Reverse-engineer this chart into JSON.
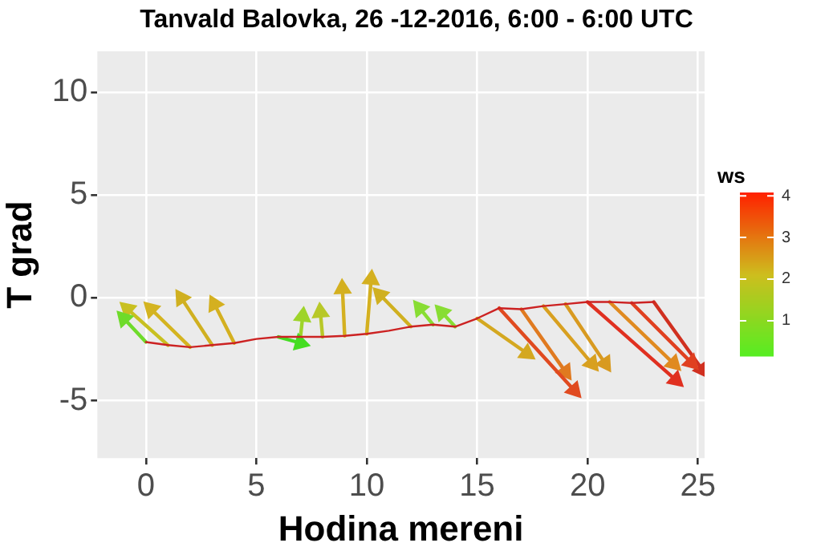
{
  "chart_data": {
    "type": "line",
    "title": "Tanvald Balovka, 26 -12-2016, 6:00 - 6:00 UTC",
    "xlabel": "Hodina mereni",
    "ylabel": "T grad",
    "clabel": "ws",
    "xlim": [
      -2.2,
      25.3
    ],
    "xticks": [
      0,
      5,
      10,
      15,
      20,
      25
    ],
    "ylim": [
      -7.8,
      12
    ],
    "yticks": [
      -5,
      0,
      5,
      10
    ],
    "clim": [
      0.15,
      4.08
    ],
    "cticks": [
      1,
      2,
      3,
      4
    ],
    "grid": true,
    "legend": false,
    "series": [
      {
        "color": "#cc2222",
        "x": [
          0,
          1,
          2,
          3,
          4,
          5,
          6,
          7,
          8,
          9,
          10,
          11,
          12,
          13,
          14,
          15,
          16,
          17,
          18,
          19,
          20,
          21,
          22,
          23
        ],
        "values": [
          -2.15,
          -2.3,
          -2.4,
          -2.3,
          -2.2,
          -2.0,
          -1.9,
          -1.9,
          -1.9,
          -1.85,
          -1.75,
          -1.6,
          -1.4,
          -1.3,
          -1.4,
          -1.0,
          -0.5,
          -0.55,
          -0.4,
          -0.3,
          -0.2,
          -0.2,
          -0.25,
          -0.2
        ]
      },
      {
        "marker": "triangle",
        "color": "#6edb2a",
        "x": [
          0,
          -1.0
        ],
        "values": [
          -2.15,
          -1.0
        ]
      },
      {
        "marker": "triangle",
        "color": "#c8c020",
        "x": [
          1,
          -0.84
        ],
        "values": [
          -2.3,
          -0.54
        ]
      },
      {
        "marker": "triangle",
        "color": "#d4b420",
        "x": [
          2,
          0.23
        ],
        "values": [
          -2.4,
          -0.54
        ]
      },
      {
        "marker": "triangle",
        "color": "#d0b020",
        "x": [
          3,
          1.6
        ],
        "values": [
          -2.3,
          0
        ]
      },
      {
        "marker": "triangle",
        "color": "#d4b020",
        "x": [
          4,
          3.1
        ],
        "values": [
          -2.2,
          -0.3
        ]
      },
      {
        "marker": "triangle",
        "color": "#44dd22",
        "x": [
          6,
          7.0
        ],
        "values": [
          -1.9,
          -2.2
        ]
      },
      {
        "marker": "triangle",
        "color": "#9ed42a",
        "x": [
          7,
          7.1
        ],
        "values": [
          -1.9,
          -0.9
        ]
      },
      {
        "marker": "triangle",
        "color": "#b8c828",
        "x": [
          8,
          7.9
        ],
        "values": [
          -1.9,
          -0.7
        ]
      },
      {
        "marker": "triangle",
        "color": "#d4b020",
        "x": [
          9,
          8.9
        ],
        "values": [
          -1.85,
          0.45
        ]
      },
      {
        "marker": "triangle",
        "color": "#d4b020",
        "x": [
          10,
          10.2
        ],
        "values": [
          -1.75,
          0.9
        ]
      },
      {
        "marker": "triangle",
        "color": "#d0b020",
        "x": [
          12,
          10.6
        ],
        "values": [
          -1.4,
          0.15
        ]
      },
      {
        "marker": "triangle",
        "color": "#88dd33",
        "x": [
          13,
          12.4
        ],
        "values": [
          -1.3,
          -0.5
        ]
      },
      {
        "marker": "triangle",
        "color": "#88dd33",
        "x": [
          14,
          13.4
        ],
        "values": [
          -1.4,
          -0.7
        ]
      },
      {
        "marker": "triangle",
        "color": "#d4a820",
        "x": [
          15,
          17.25
        ],
        "values": [
          -1.0,
          -2.7
        ]
      },
      {
        "marker": "triangle",
        "color": "#e04a20",
        "x": [
          16,
          19.4
        ],
        "values": [
          -0.5,
          -4.5
        ]
      },
      {
        "marker": "triangle",
        "color": "#e07a20",
        "x": [
          17,
          19.0
        ],
        "values": [
          -0.55,
          -3.6
        ]
      },
      {
        "marker": "triangle",
        "color": "#d8a020",
        "x": [
          18,
          20.2
        ],
        "values": [
          -0.4,
          -3.2
        ]
      },
      {
        "marker": "triangle",
        "color": "#d89a20",
        "x": [
          19,
          20.8
        ],
        "values": [
          -0.3,
          -3.2
        ]
      },
      {
        "marker": "triangle",
        "color": "#e03020",
        "x": [
          20,
          24.0
        ],
        "values": [
          -0.2,
          -4.0
        ]
      },
      {
        "marker": "triangle",
        "color": "#e08a20",
        "x": [
          21,
          23.9
        ],
        "values": [
          -0.2,
          -3.2
        ]
      },
      {
        "marker": "triangle",
        "color": "#e04020",
        "x": [
          22,
          24.7
        ],
        "values": [
          -0.25,
          -3.15
        ]
      },
      {
        "marker": "triangle",
        "color": "#d03020",
        "x": [
          23,
          25.2
        ],
        "values": [
          -0.2,
          -3.5
        ]
      }
    ]
  }
}
